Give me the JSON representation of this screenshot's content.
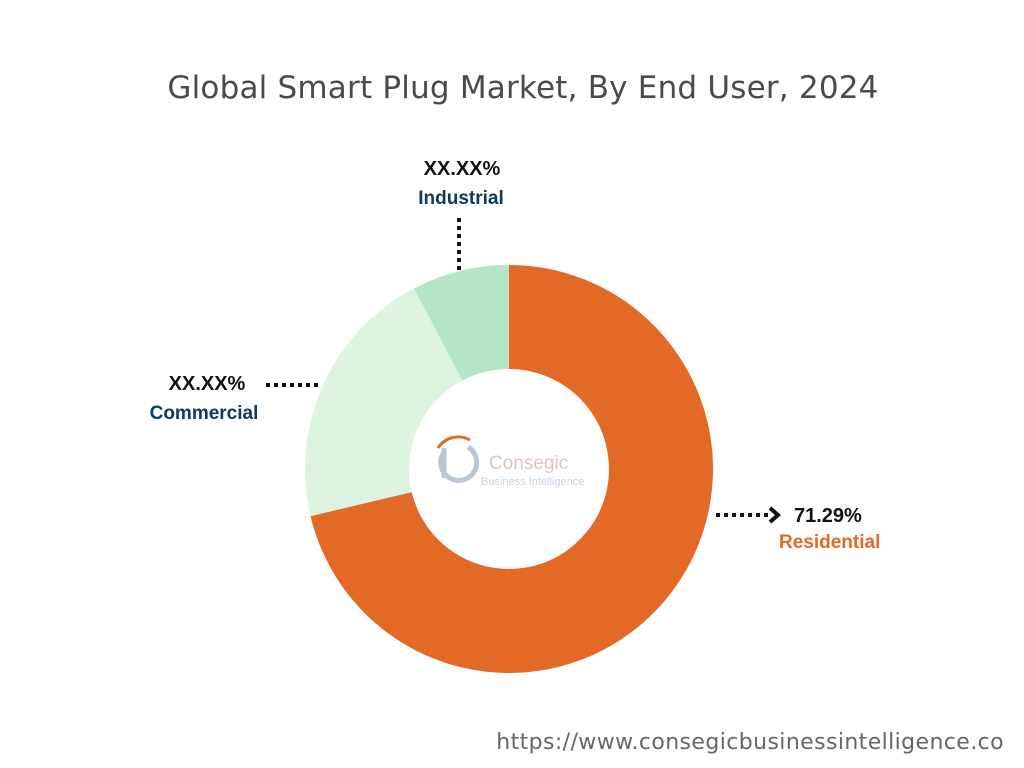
{
  "title": "Global Smart Plug Market, By End User, 2024",
  "footer": {
    "url": "https://www.consegicbusinessintelligence.co"
  },
  "logo": {
    "name": "Consegic",
    "tagline": "Business Intelligence",
    "icon": "cbi-monogram-icon"
  },
  "colors": {
    "residential": "#e36927",
    "commercial": "#dcf3e0",
    "industrial": "#b5e5c7",
    "label_dark": "#0d3a62",
    "value_text": "#111111",
    "leader": "#111111"
  },
  "chart_data": {
    "type": "pie",
    "variant": "donut",
    "title": "Global Smart Plug Market, By End User, 2024",
    "slices": [
      {
        "label": "Residential",
        "value": 71.29,
        "value_text": "71.29%",
        "color": "#e36927"
      },
      {
        "label": "Commercial",
        "value": 21.0,
        "value_text": "XX.XX%",
        "color": "#dcf3e0"
      },
      {
        "label": "Industrial",
        "value": 7.71,
        "value_text": "XX.XX%",
        "color": "#b5e5c7"
      }
    ],
    "start": "12 o'clock",
    "direction": "clockwise"
  }
}
